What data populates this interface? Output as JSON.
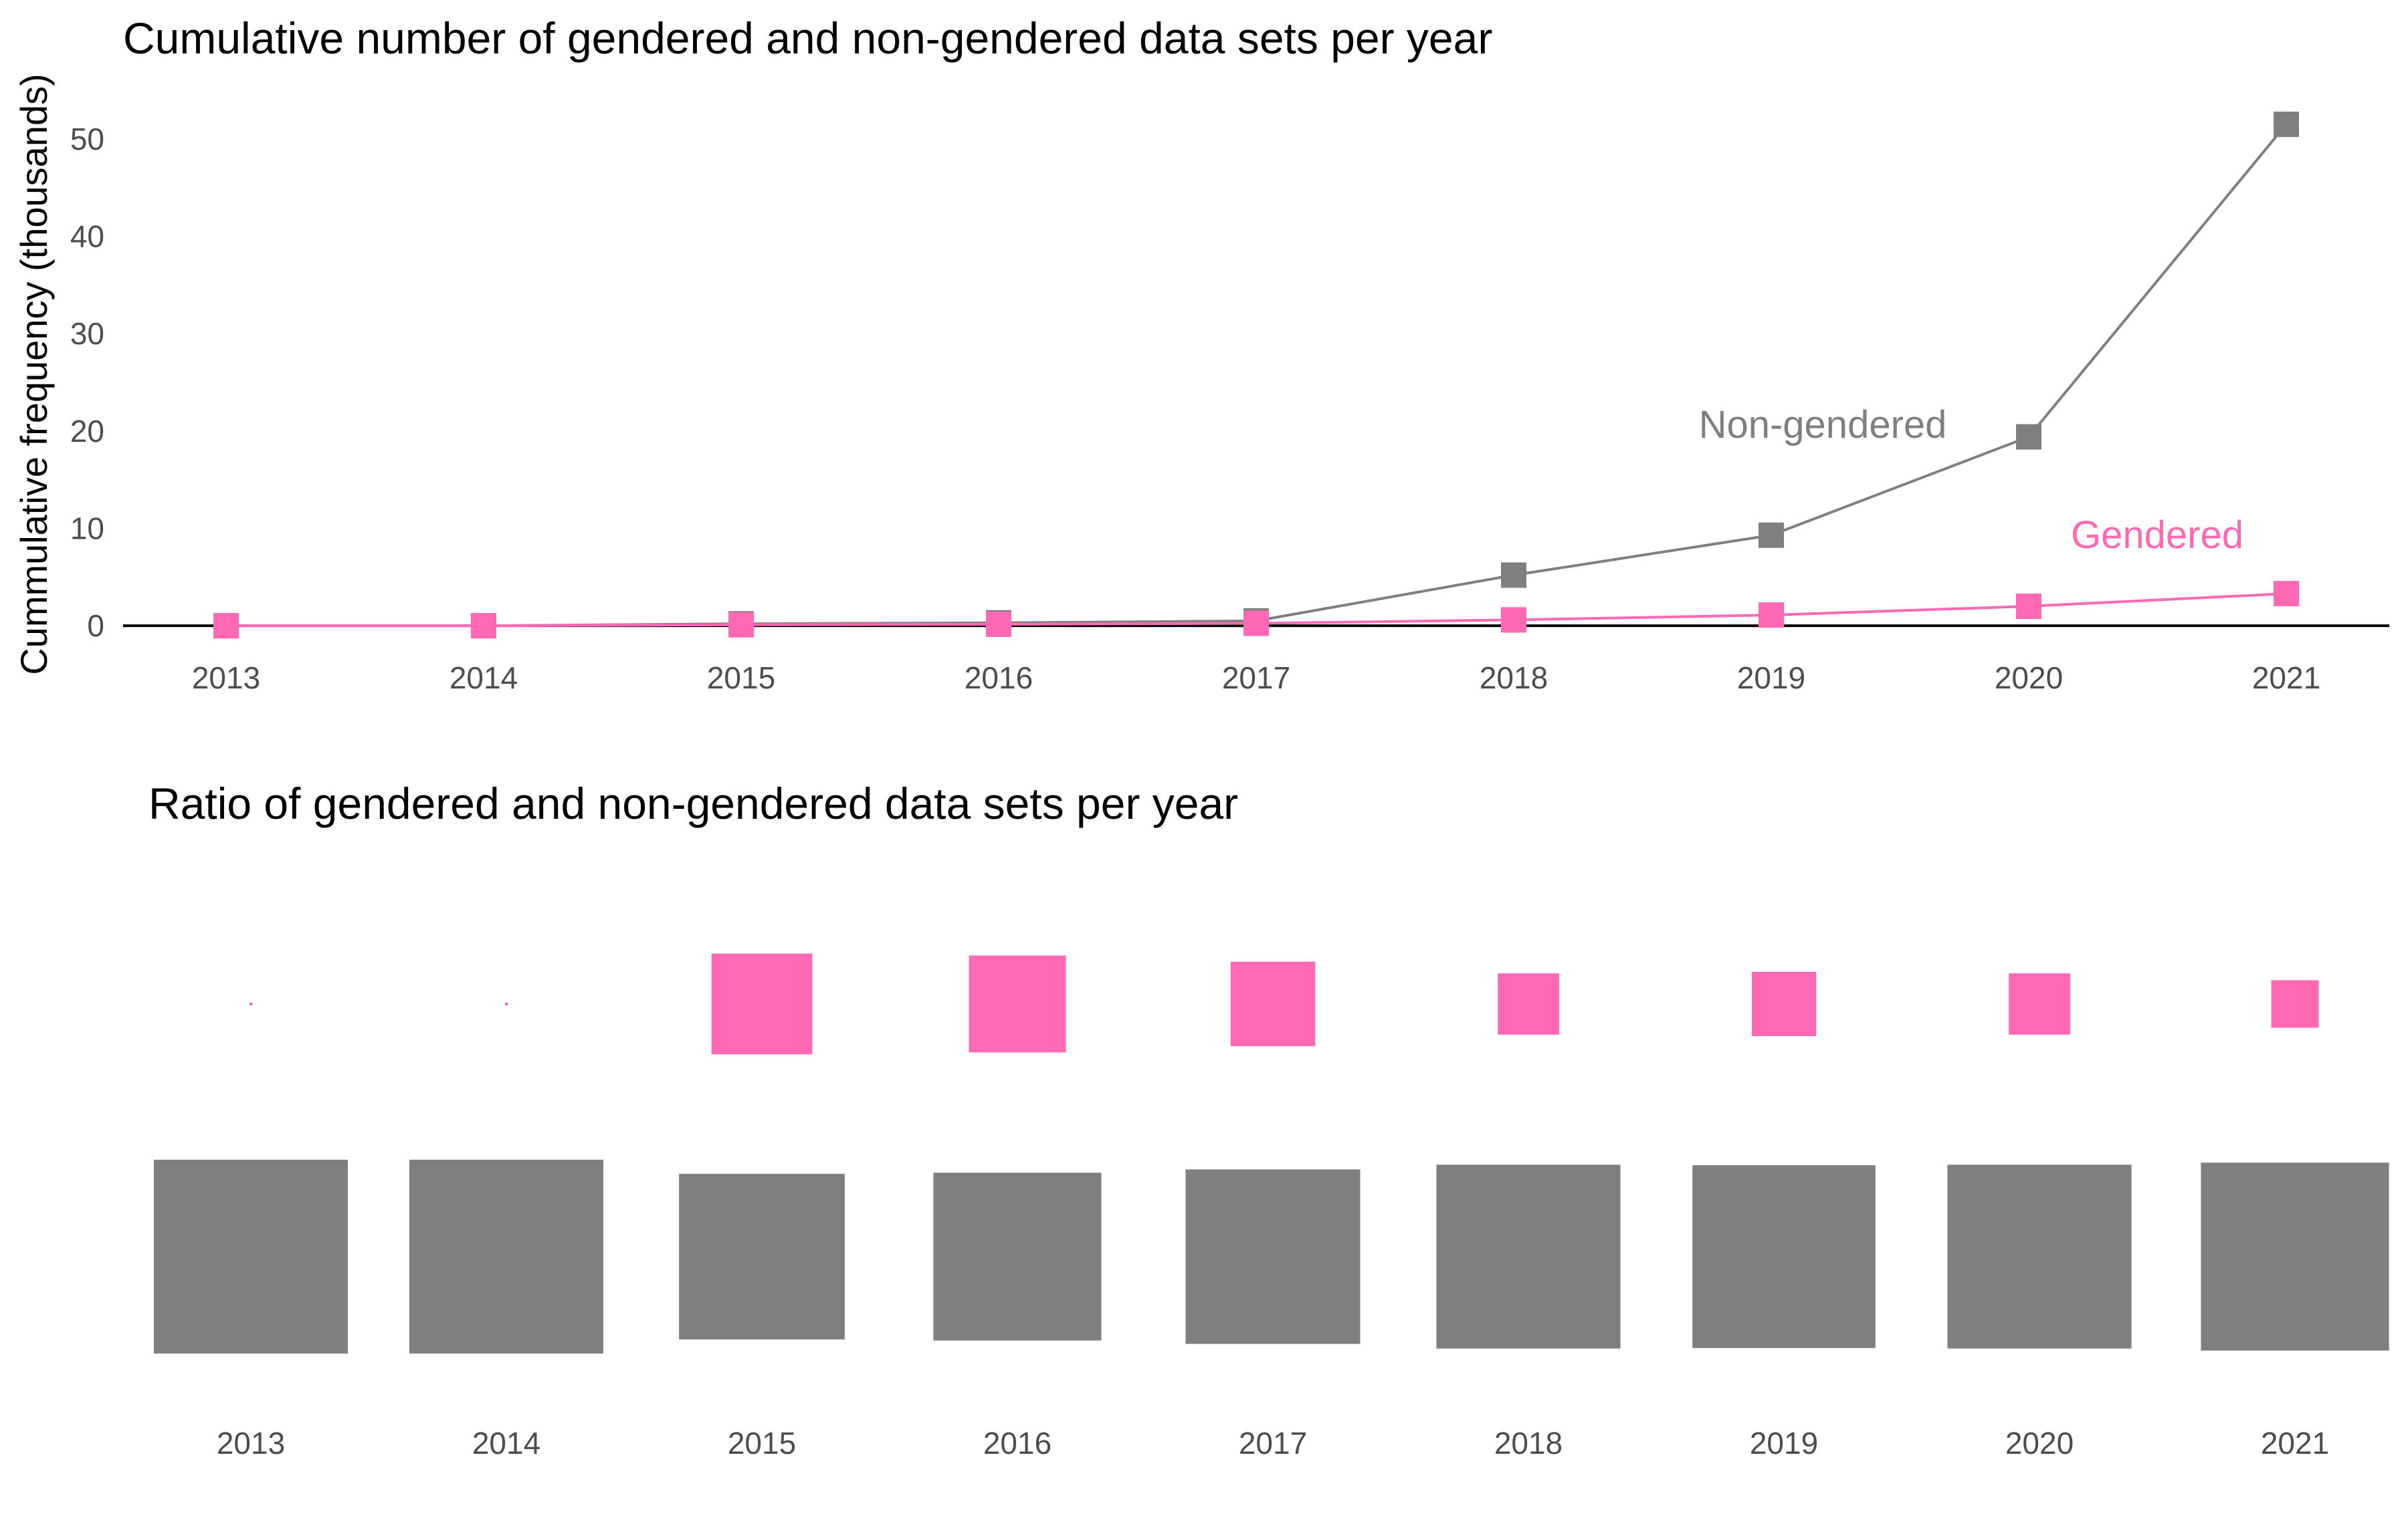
{
  "chart_data": [
    {
      "type": "line",
      "title": "Cumulative number of gendered and non-gendered data sets per year",
      "ylabel": "Cummulative frequency (thousands)",
      "xlabel": "",
      "categories": [
        "2013",
        "2014",
        "2015",
        "2016",
        "2017",
        "2018",
        "2019",
        "2020",
        "2021"
      ],
      "yticks": [
        0,
        10,
        20,
        30,
        40,
        50
      ],
      "ylim": [
        -1.5,
        55
      ],
      "grid": false,
      "legend": "direct labels",
      "series": [
        {
          "name": "Non-gendered",
          "color": "#7f7f7f",
          "values": [
            0.0,
            0.0,
            0.2,
            0.3,
            0.5,
            5.2,
            9.3,
            19.4,
            51.5
          ]
        },
        {
          "name": "Gendered",
          "color": "#ff69b4",
          "values": [
            0.0,
            0.0,
            0.1,
            0.15,
            0.25,
            0.6,
            1.1,
            2.0,
            3.3
          ]
        }
      ]
    },
    {
      "type": "bar",
      "title": "Ratio of gendered and non-gendered data sets per year",
      "categories": [
        "2013",
        "2014",
        "2015",
        "2016",
        "2017",
        "2018",
        "2019",
        "2020",
        "2021"
      ],
      "grid": false,
      "note_encoding": "square area proportional to share",
      "series": [
        {
          "name": "Gendered",
          "color": "#ff69b4",
          "values": [
            0.0002,
            0.0002,
            0.27,
            0.25,
            0.19,
            0.1,
            0.11,
            0.1,
            0.06
          ]
        },
        {
          "name": "Non-gendered",
          "color": "#7f7f7f",
          "values": [
            1.0,
            1.0,
            0.73,
            0.75,
            0.81,
            0.9,
            0.89,
            0.9,
            0.94
          ]
        }
      ]
    }
  ]
}
